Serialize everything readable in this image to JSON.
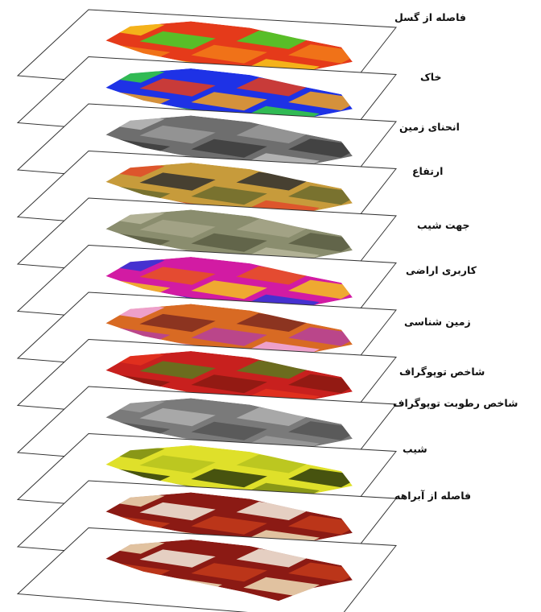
{
  "layers": [
    {
      "label": "فاصله از گسل",
      "palette": [
        "#e53a1a",
        "#f7c81b",
        "#f27d19",
        "#3fd62b"
      ]
    },
    {
      "label": "خاک",
      "palette": [
        "#1e32e6",
        "#35d23a",
        "#f6a21c",
        "#e63d1a"
      ]
    },
    {
      "label": "انحنای زمین",
      "palette": [
        "#6e6e6e",
        "#bdbdbd",
        "#3c3c3c",
        "#9a9a9a"
      ]
    },
    {
      "label": "ارتفاع",
      "palette": [
        "#c79b3b",
        "#e04a2a",
        "#6b6b2e",
        "#303030"
      ]
    },
    {
      "label": "جهت شیب",
      "palette": [
        "#8a8d6e",
        "#b7b79c",
        "#5a5e44",
        "#a6a68a"
      ]
    },
    {
      "label": "کاربری اراضی",
      "palette": [
        "#d21ba3",
        "#2d35d8",
        "#f5c21d",
        "#e8541d"
      ]
    },
    {
      "label": "زمین شناسی",
      "palette": [
        "#d86a23",
        "#f2a9e8",
        "#b53f9c",
        "#7f2a20"
      ]
    },
    {
      "label": "شاخص توپوگراف",
      "palette": [
        "#c8201e",
        "#e4331f",
        "#8a1a12",
        "#5a7a1e"
      ]
    },
    {
      "label": "شاخص رطوبت توپوگراف",
      "palette": [
        "#7a7a7a",
        "#9c9c9c",
        "#555555",
        "#b0b0b0"
      ]
    },
    {
      "label": "شیب",
      "palette": [
        "#dfe02a",
        "#7a8a14",
        "#2d3a0a",
        "#b6c21e"
      ]
    },
    {
      "label": "فاصله از آبراهه",
      "palette": [
        "#8b1a14",
        "#f0e0b8",
        "#c33b1a",
        "#f5f0e0"
      ]
    },
    {
      "label": "",
      "palette": [
        "#8b1a14",
        "#f0e0b8",
        "#c33b1a",
        "#f5f0e0"
      ]
    }
  ]
}
